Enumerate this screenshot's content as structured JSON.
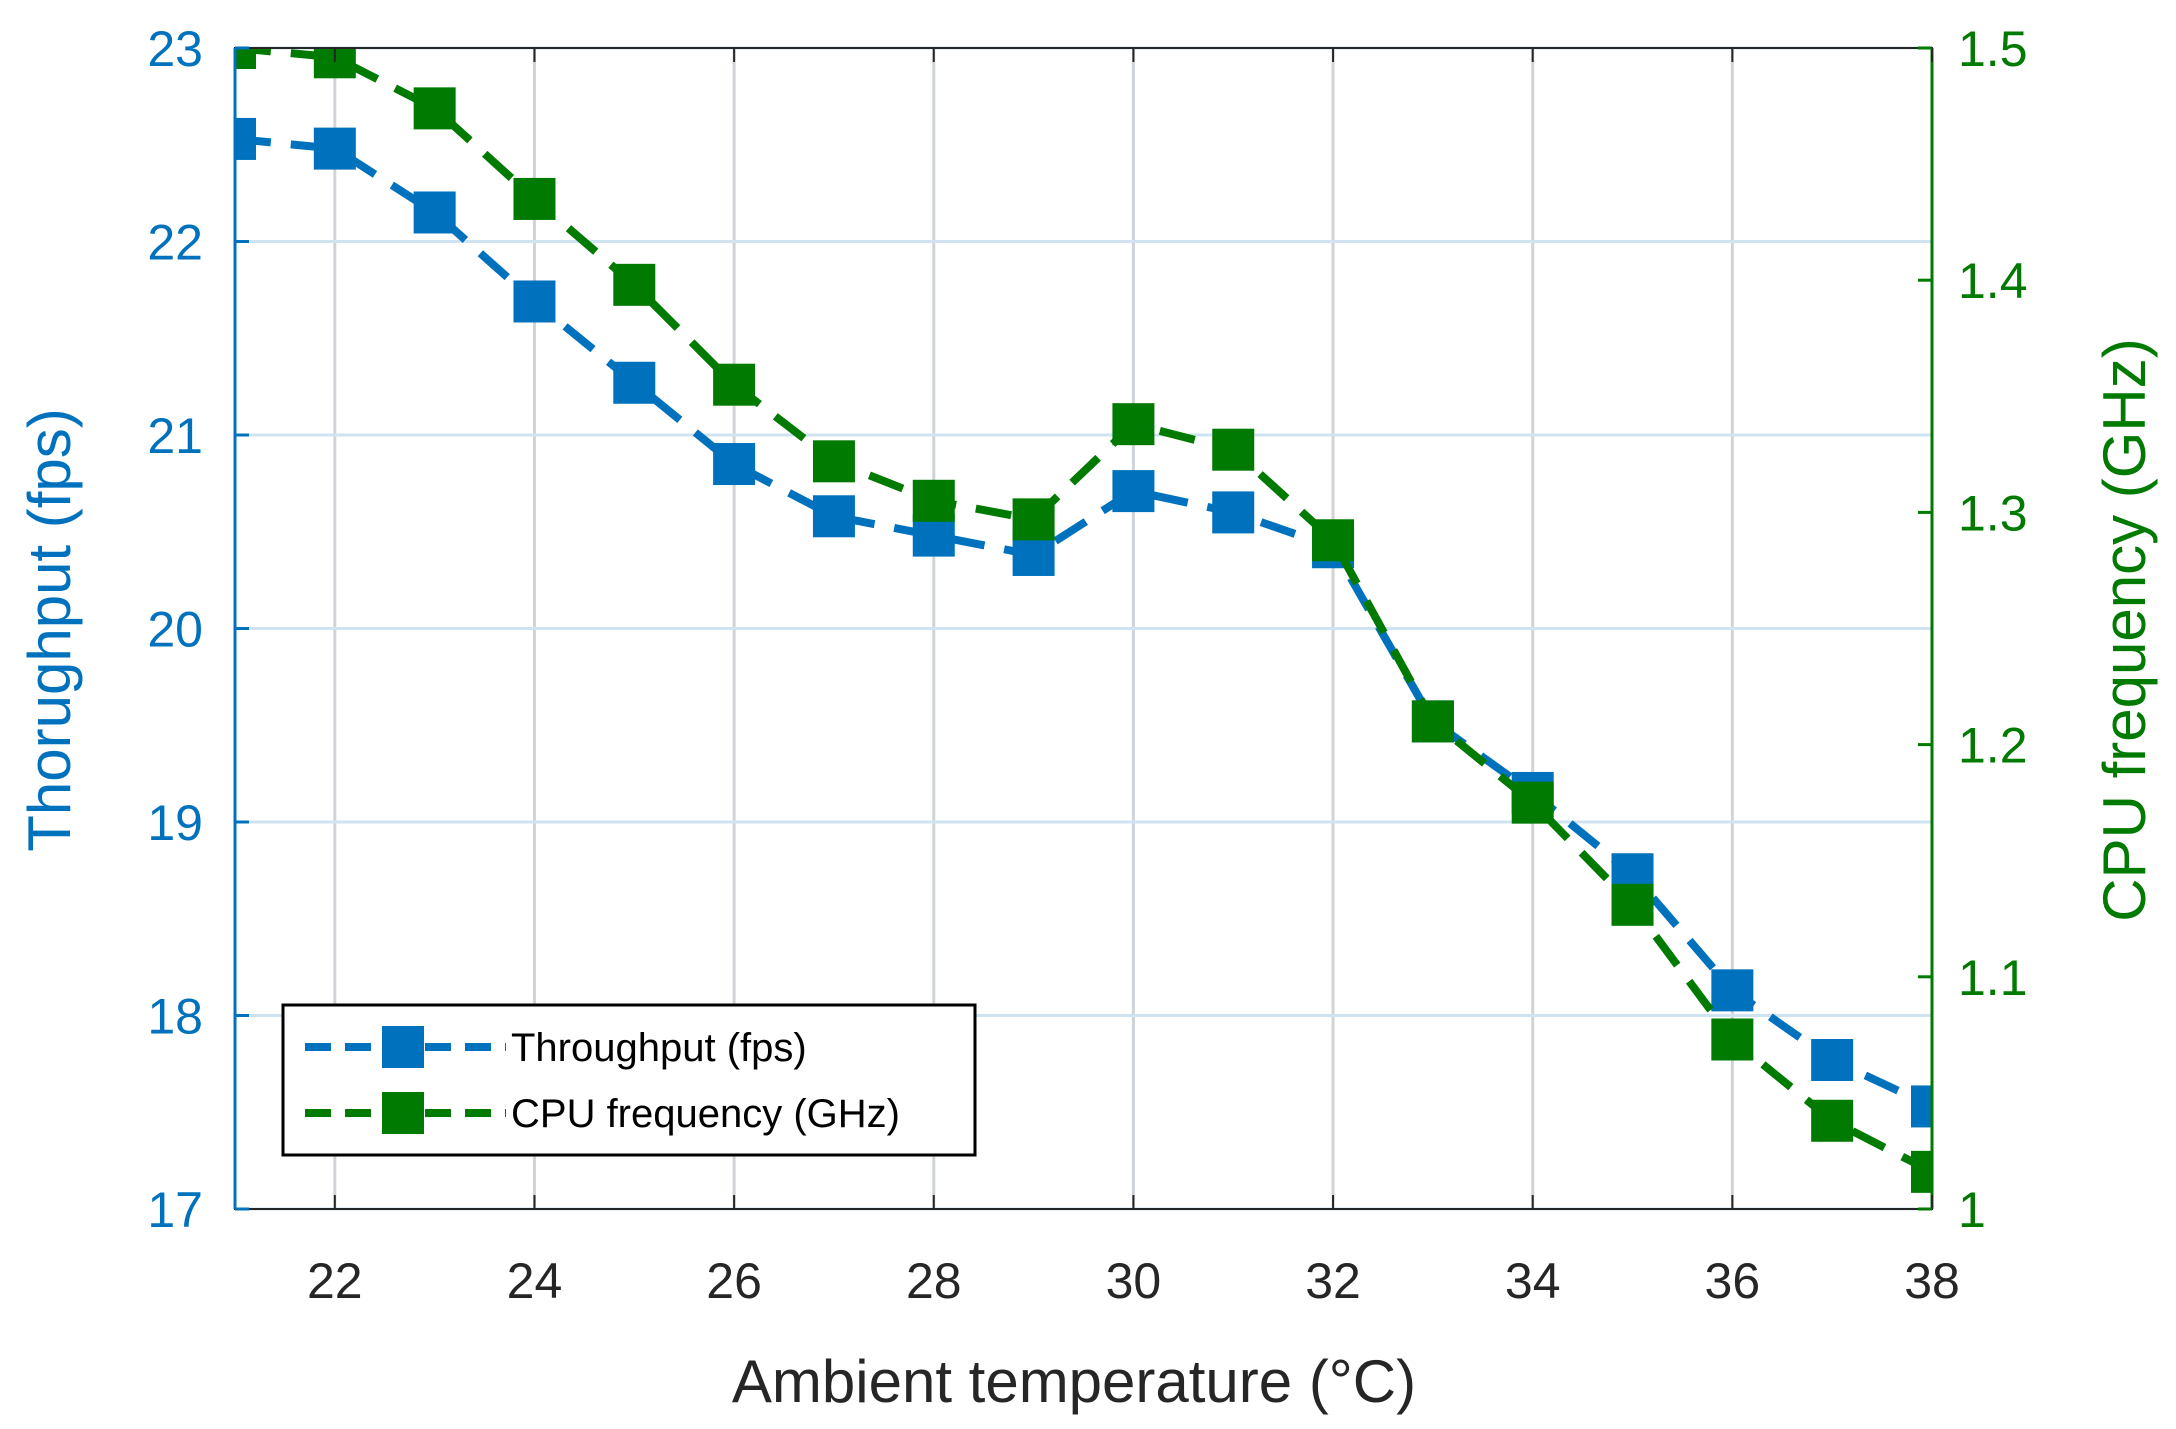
{
  "chart_data": {
    "type": "line",
    "title": "",
    "xlabel": "Ambient temperature (°C)",
    "ylabel_left": "Thorughput (fps)",
    "ylabel_right": "CPU frequency (GHz)",
    "xlim": [
      21,
      38
    ],
    "ylim_left": [
      17,
      23
    ],
    "ylim_right": [
      1.0,
      1.5
    ],
    "xticks": [
      22,
      24,
      26,
      28,
      30,
      32,
      34,
      36,
      38
    ],
    "xtick_labels": [
      "22",
      "24",
      "26",
      "28",
      "30",
      "32",
      "34",
      "36",
      "38"
    ],
    "yticks_left": [
      17,
      18,
      19,
      20,
      21,
      22,
      23
    ],
    "ytick_labels_left": [
      "17",
      "18",
      "19",
      "20",
      "21",
      "22",
      "23"
    ],
    "yticks_right": [
      1.0,
      1.1,
      1.2,
      1.3,
      1.4,
      1.5
    ],
    "ytick_labels_right": [
      "1",
      "1.1",
      "1.2",
      "1.3",
      "1.4",
      "1.5"
    ],
    "grid": true,
    "legend_position": "bottom-left",
    "x": [
      21,
      22,
      23,
      24,
      25,
      26,
      27,
      28,
      29,
      30,
      31,
      32,
      33,
      34,
      35,
      36,
      37,
      38
    ],
    "series": [
      {
        "name": "Throughput (fps)",
        "axis": "left",
        "color": "#0072BD",
        "linestyle": "dashed",
        "marker": "square",
        "values": [
          22.53,
          22.48,
          22.15,
          21.69,
          21.27,
          20.85,
          20.58,
          20.48,
          20.38,
          20.71,
          20.6,
          20.42,
          19.52,
          19.15,
          18.73,
          18.13,
          17.77,
          17.53
        ]
      },
      {
        "name": "CPU frequency (GHz)",
        "axis": "right",
        "color": "#007A00",
        "linestyle": "dashed",
        "marker": "square",
        "values": [
          1.5,
          1.496,
          1.474,
          1.435,
          1.398,
          1.355,
          1.322,
          1.305,
          1.297,
          1.338,
          1.327,
          1.288,
          1.21,
          1.175,
          1.131,
          1.073,
          1.038,
          1.016
        ]
      }
    ]
  },
  "legend": {
    "items": [
      "Throughput (fps)",
      "CPU frequency (GHz)"
    ]
  }
}
